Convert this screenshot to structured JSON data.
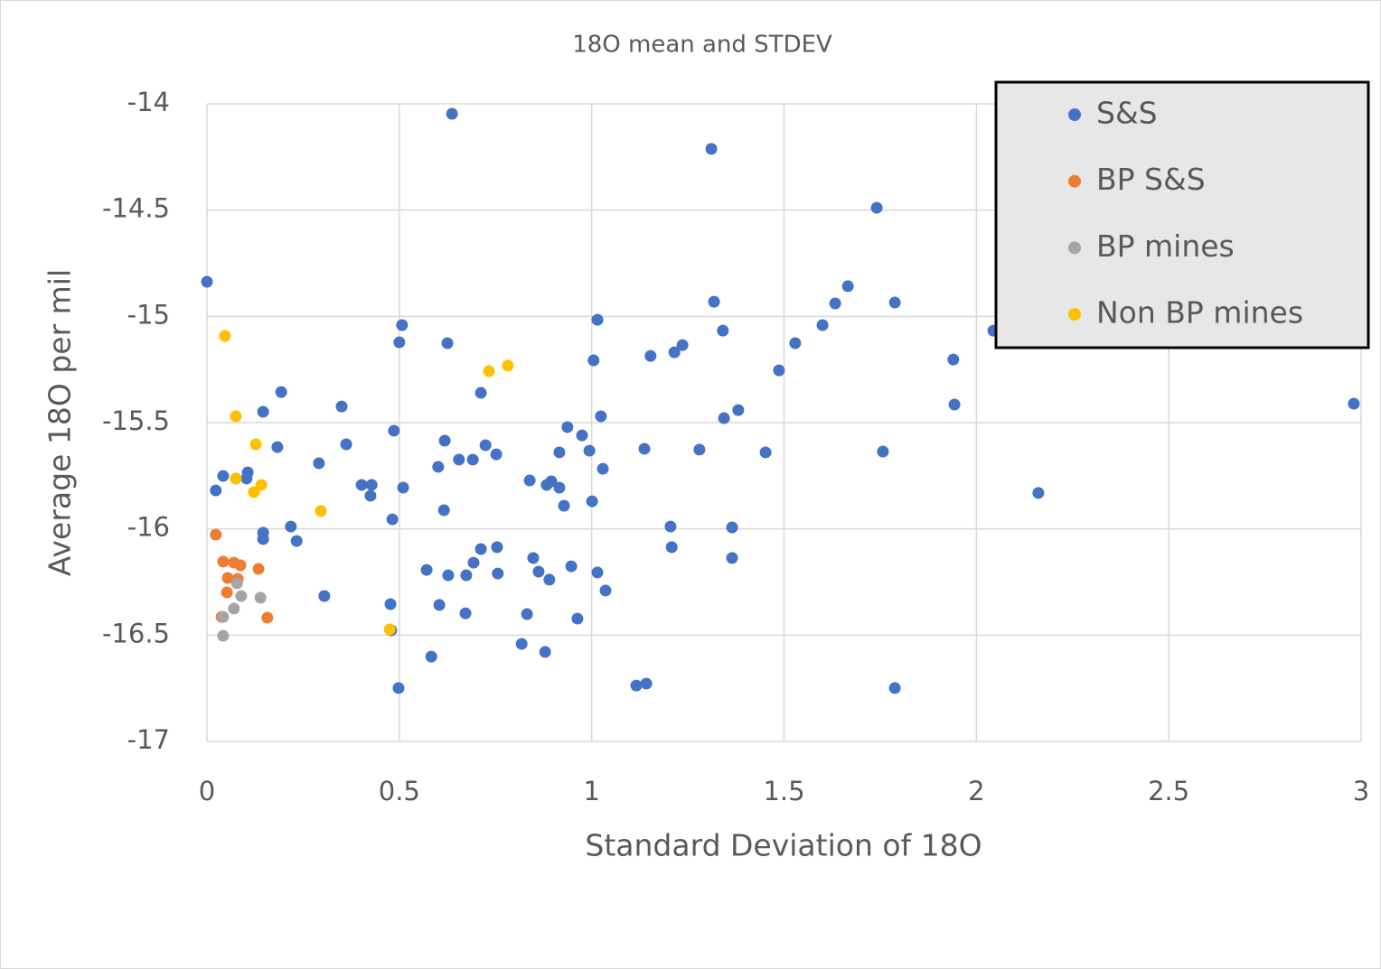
{
  "chart_data": {
    "type": "scatter",
    "title": "18O mean and STDEV",
    "x_label": "Standard Deviation of 18O",
    "y_label": "Average 18O per mil",
    "xlim": [
      0,
      3
    ],
    "ylim": [
      -17,
      -14
    ],
    "xticks": [
      0,
      0.5,
      1,
      1.5,
      2,
      2.5,
      3
    ],
    "yticks": [
      -14,
      -14.5,
      -15,
      -15.5,
      -16,
      -16.5,
      -17
    ],
    "grid": true,
    "legend": "top-right",
    "series": [
      {
        "name": "S&S",
        "color": "#4472c4",
        "x": [
          0.637,
          1.311,
          1.741,
          0,
          1.318,
          1.666,
          1.633,
          1.788,
          0.507,
          1.015,
          1.6,
          2.044,
          1.341,
          0.5,
          0.625,
          1.236,
          1.215,
          1.153,
          1.529,
          1.005,
          1.94,
          1.487,
          0.193,
          0.712,
          0.35,
          0.146,
          1.381,
          1.344,
          1.024,
          1.943,
          2.981,
          0.486,
          0.937,
          0.975,
          0.618,
          0.362,
          0.724,
          0.183,
          1.137,
          1.28,
          0.994,
          0.916,
          0.752,
          1.452,
          1.757,
          0.291,
          0.655,
          0.691,
          0.601,
          1.029,
          0.106,
          0.042,
          0.103,
          0.839,
          0.895,
          0.402,
          0.428,
          0.883,
          0.916,
          0.51,
          0.023,
          0.425,
          2.161,
          1.001,
          0.928,
          0.616,
          0.482,
          0.218,
          1.205,
          1.365,
          0.146,
          0.146,
          0.233,
          0.754,
          0.712,
          1.208,
          0.848,
          1.365,
          0.693,
          0.947,
          0.571,
          0.862,
          1.015,
          0.627,
          0.756,
          0.674,
          0.89,
          1.036,
          0.305,
          0.477,
          0.604,
          0.672,
          0.832,
          0.963,
          0.479,
          0.818,
          0.879,
          0.583,
          1.116,
          1.142,
          0.498,
          1.788
        ],
        "values": [
          -14.047,
          -14.212,
          -14.489,
          -14.837,
          -14.931,
          -14.858,
          -14.939,
          -14.935,
          -15.041,
          -15.016,
          -15.041,
          -15.067,
          -15.067,
          -15.122,
          -15.126,
          -15.135,
          -15.169,
          -15.186,
          -15.126,
          -15.207,
          -15.203,
          -15.254,
          -15.356,
          -15.36,
          -15.424,
          -15.449,
          -15.441,
          -15.479,
          -15.47,
          -15.415,
          -15.411,
          -15.538,
          -15.521,
          -15.56,
          -15.585,
          -15.602,
          -15.606,
          -15.615,
          -15.623,
          -15.627,
          -15.632,
          -15.64,
          -15.649,
          -15.64,
          -15.636,
          -15.691,
          -15.674,
          -15.674,
          -15.708,
          -15.717,
          -15.734,
          -15.751,
          -15.763,
          -15.772,
          -15.776,
          -15.793,
          -15.793,
          -15.793,
          -15.806,
          -15.806,
          -15.819,
          -15.844,
          -15.831,
          -15.87,
          -15.891,
          -15.912,
          -15.955,
          -15.989,
          -15.989,
          -15.993,
          -16.018,
          -16.048,
          -16.057,
          -16.086,
          -16.095,
          -16.086,
          -16.137,
          -16.137,
          -16.159,
          -16.176,
          -16.193,
          -16.201,
          -16.205,
          -16.218,
          -16.21,
          -16.218,
          -16.239,
          -16.29,
          -16.316,
          -16.354,
          -16.358,
          -16.397,
          -16.401,
          -16.422,
          -16.477,
          -16.541,
          -16.579,
          -16.601,
          -16.737,
          -16.728,
          -16.749,
          -16.749
        ]
      },
      {
        "name": "BP S&S",
        "color": "#ed7d31",
        "x": [
          0.023,
          0.042,
          0.07,
          0.087,
          0.134,
          0.054,
          0.08,
          0.052,
          0.038,
          0.157
        ],
        "values": [
          -16.027,
          -16.154,
          -16.159,
          -16.171,
          -16.188,
          -16.231,
          -16.235,
          -16.299,
          -16.414,
          -16.418
        ]
      },
      {
        "name": "BP mines",
        "color": "#a5a5a5",
        "x": [
          0.078,
          0.089,
          0.139,
          0.07,
          0.042,
          0.042
        ],
        "values": [
          -16.256,
          -16.316,
          -16.324,
          -16.375,
          -16.414,
          -16.503
        ]
      },
      {
        "name": "Non BP mines",
        "color": "#ffc000",
        "x": [
          0.047,
          0.075,
          0.127,
          0.075,
          0.141,
          0.122,
          0.296,
          0.733,
          0.782,
          0.475
        ],
        "values": [
          -15.092,
          -15.47,
          -15.602,
          -15.763,
          -15.793,
          -15.827,
          -15.916,
          -15.258,
          -15.232,
          -16.473
        ]
      }
    ]
  }
}
